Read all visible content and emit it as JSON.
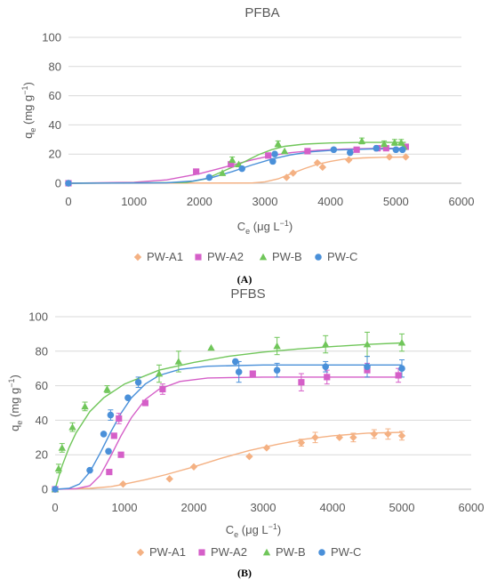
{
  "chart_data": [
    {
      "type": "scatter",
      "panel_label": "(A)",
      "title": "PFBA",
      "xlabel": {
        "base": "C",
        "sub": "e",
        "unit": "(μg L",
        "sup": "−1",
        "end": ")"
      },
      "ylabel": {
        "base": "q",
        "sub": "e",
        "unit": "(mg g",
        "sup": "−1",
        "end": ")"
      },
      "xlim": [
        0,
        6000
      ],
      "ylim": [
        0,
        100
      ],
      "xticks": [
        0,
        1000,
        2000,
        3000,
        4000,
        5000,
        6000
      ],
      "yticks": [
        0,
        20,
        40,
        60,
        80,
        100
      ],
      "xtick_labels": [
        "0",
        "1000",
        "2000",
        "3000",
        "4000",
        "5000",
        "6000"
      ],
      "ytick_labels": [
        "0",
        "20",
        "40",
        "60",
        "80",
        "100"
      ],
      "grid": "horizontal",
      "legend_position": "bottom",
      "series": [
        {
          "name": "PW-A1",
          "color": "#F4B183",
          "marker": "diamond",
          "points": [
            [
              0,
              0
            ],
            [
              3330,
              4
            ],
            [
              3430,
              7
            ],
            [
              3800,
              14
            ],
            [
              3880,
              11
            ],
            [
              4280,
              16
            ],
            [
              4900,
              18
            ],
            [
              5150,
              18
            ]
          ],
          "errors": [],
          "fit": [
            [
              0,
              0
            ],
            [
              2800,
              0.2
            ],
            [
              3000,
              1
            ],
            [
              3200,
              3
            ],
            [
              3400,
              6.5
            ],
            [
              3600,
              10
            ],
            [
              3800,
              13
            ],
            [
              4000,
              15
            ],
            [
              4200,
              16.5
            ],
            [
              4500,
              17.4
            ],
            [
              4800,
              17.8
            ],
            [
              5150,
              18
            ]
          ]
        },
        {
          "name": "PW-A2",
          "color": "#D55FC8",
          "marker": "square",
          "points": [
            [
              0,
              0
            ],
            [
              1950,
              8
            ],
            [
              2480,
              13
            ],
            [
              3050,
              19
            ],
            [
              3650,
              22
            ],
            [
              4400,
              23
            ],
            [
              4720,
              24
            ],
            [
              4850,
              24
            ],
            [
              5150,
              25
            ]
          ],
          "errors": [],
          "fit": [
            [
              0,
              0
            ],
            [
              1000,
              0.7
            ],
            [
              1500,
              2.3
            ],
            [
              2000,
              6.5
            ],
            [
              2300,
              10
            ],
            [
              2500,
              12.5
            ],
            [
              2800,
              16
            ],
            [
              3100,
              19
            ],
            [
              3400,
              21
            ],
            [
              3800,
              22.6
            ],
            [
              4200,
              23.4
            ],
            [
              4700,
              23.9
            ],
            [
              5150,
              24
            ]
          ]
        },
        {
          "name": "PW-B",
          "color": "#70C65A",
          "marker": "triangle",
          "points": [
            [
              2350,
              7
            ],
            [
              2500,
              16
            ],
            [
              2600,
              13
            ],
            [
              3200,
              27
            ],
            [
              3300,
              22
            ],
            [
              4480,
              29
            ],
            [
              4820,
              27
            ],
            [
              4980,
              28
            ],
            [
              5080,
              28
            ],
            [
              5120,
              25
            ]
          ],
          "errors": [
            [
              2500,
              16,
              2
            ],
            [
              3200,
              27,
              2
            ],
            [
              4480,
              29,
              2
            ],
            [
              4820,
              27,
              2
            ],
            [
              4980,
              28,
              2
            ],
            [
              5080,
              28,
              2
            ]
          ],
          "fit": [
            [
              0,
              0
            ],
            [
              1800,
              0.5
            ],
            [
              2100,
              3
            ],
            [
              2300,
              7
            ],
            [
              2500,
              11
            ],
            [
              2700,
              15
            ],
            [
              2900,
              19.5
            ],
            [
              3100,
              23
            ],
            [
              3300,
              25.3
            ],
            [
              3600,
              26.8
            ],
            [
              4000,
              27.6
            ],
            [
              4500,
              28
            ],
            [
              5150,
              28
            ]
          ]
        },
        {
          "name": "PW-C",
          "color": "#4A90D9",
          "marker": "circle",
          "points": [
            [
              0,
              0
            ],
            [
              2150,
              4
            ],
            [
              2650,
              10
            ],
            [
              3120,
              15
            ],
            [
              3150,
              20
            ],
            [
              4050,
              23
            ],
            [
              4300,
              21
            ],
            [
              4700,
              24
            ],
            [
              5000,
              23
            ],
            [
              5100,
              23
            ]
          ],
          "errors": [],
          "fit": [
            [
              0,
              0
            ],
            [
              1500,
              0.3
            ],
            [
              1900,
              1.5
            ],
            [
              2200,
              4
            ],
            [
              2500,
              8
            ],
            [
              2800,
              12.5
            ],
            [
              3100,
              16.5
            ],
            [
              3400,
              19.5
            ],
            [
              3700,
              21.5
            ],
            [
              4100,
              22.8
            ],
            [
              4600,
              23.5
            ],
            [
              5150,
              23.8
            ]
          ]
        }
      ]
    },
    {
      "type": "scatter",
      "panel_label": "(B)",
      "title": "PFBS",
      "xlabel": {
        "base": "C",
        "sub": "e",
        "unit": "(μg L",
        "sup": "−1",
        "end": ")"
      },
      "ylabel": {
        "base": "q",
        "sub": "e",
        "unit": "(mg g",
        "sup": "−1",
        "end": ")"
      },
      "xlim": [
        0,
        6000
      ],
      "ylim": [
        0,
        100
      ],
      "xticks": [
        0,
        1000,
        2000,
        3000,
        4000,
        5000,
        6000
      ],
      "yticks": [
        0,
        20,
        40,
        60,
        80,
        100
      ],
      "xtick_labels": [
        "0",
        "1000",
        "2000",
        "3000",
        "4000",
        "5000",
        "6000"
      ],
      "ytick_labels": [
        "0",
        "20",
        "40",
        "60",
        "80",
        "100"
      ],
      "grid": "horizontal",
      "legend_position": "bottom",
      "series": [
        {
          "name": "PW-A1",
          "color": "#F4B183",
          "marker": "diamond",
          "points": [
            [
              0,
              0
            ],
            [
              980,
              3
            ],
            [
              1650,
              6
            ],
            [
              2000,
              13
            ],
            [
              2800,
              19
            ],
            [
              3050,
              24
            ],
            [
              3550,
              27
            ],
            [
              3750,
              30
            ],
            [
              4100,
              30
            ],
            [
              4300,
              30
            ],
            [
              4600,
              32
            ],
            [
              4800,
              32
            ],
            [
              5000,
              31
            ]
          ],
          "errors": [
            [
              3550,
              27,
              2
            ],
            [
              3750,
              30,
              3
            ],
            [
              4300,
              30,
              2.5
            ],
            [
              4600,
              32,
              2.5
            ],
            [
              4800,
              32,
              3
            ],
            [
              5000,
              31,
              2.5
            ]
          ],
          "fit": [
            [
              0,
              0
            ],
            [
              500,
              0.5
            ],
            [
              800,
              1.5
            ],
            [
              1000,
              3
            ],
            [
              1300,
              5.5
            ],
            [
              1600,
              8.5
            ],
            [
              2000,
              13
            ],
            [
              2400,
              18
            ],
            [
              2800,
              22.5
            ],
            [
              3200,
              26
            ],
            [
              3600,
              29
            ],
            [
              4000,
              31
            ],
            [
              4500,
              32.5
            ],
            [
              5000,
              33
            ]
          ]
        },
        {
          "name": "PW-A2",
          "color": "#D55FC8",
          "marker": "square",
          "points": [
            [
              0,
              0
            ],
            [
              780,
              10
            ],
            [
              850,
              31
            ],
            [
              920,
              41
            ],
            [
              950,
              20
            ],
            [
              1300,
              50
            ],
            [
              1550,
              58
            ],
            [
              2850,
              67
            ],
            [
              3550,
              62
            ],
            [
              3920,
              65
            ],
            [
              4500,
              69
            ],
            [
              4950,
              66
            ]
          ],
          "errors": [
            [
              920,
              41,
              3
            ],
            [
              1550,
              58,
              3
            ],
            [
              3550,
              62,
              5
            ],
            [
              3920,
              65,
              4
            ],
            [
              4500,
              69,
              4
            ],
            [
              4950,
              66,
              4
            ]
          ],
          "fit": [
            [
              0,
              0
            ],
            [
              300,
              0.3
            ],
            [
              500,
              2
            ],
            [
              650,
              8
            ],
            [
              800,
              19
            ],
            [
              950,
              31
            ],
            [
              1100,
              41.5
            ],
            [
              1300,
              52
            ],
            [
              1500,
              58
            ],
            [
              1800,
              62.5
            ],
            [
              2200,
              64.5
            ],
            [
              3000,
              65
            ],
            [
              5000,
              65
            ]
          ]
        },
        {
          "name": "PW-B",
          "color": "#70C65A",
          "marker": "triangle",
          "points": [
            [
              0,
              0
            ],
            [
              50,
              12
            ],
            [
              100,
              24
            ],
            [
              250,
              36
            ],
            [
              430,
              48
            ],
            [
              750,
              58
            ],
            [
              1500,
              67
            ],
            [
              1780,
              74
            ],
            [
              2250,
              82
            ],
            [
              3200,
              83
            ],
            [
              3900,
              84
            ],
            [
              4500,
              84
            ],
            [
              5000,
              85
            ]
          ],
          "errors": [
            [
              50,
              12,
              2.5
            ],
            [
              100,
              24,
              2.5
            ],
            [
              250,
              36,
              2.5
            ],
            [
              430,
              48,
              2.5
            ],
            [
              750,
              58,
              2
            ],
            [
              1500,
              67,
              5
            ],
            [
              1780,
              74,
              6
            ],
            [
              3200,
              83,
              5
            ],
            [
              3900,
              84,
              5
            ],
            [
              4500,
              84,
              7
            ],
            [
              5000,
              85,
              5
            ]
          ],
          "fit": [
            [
              0,
              0
            ],
            [
              50,
              7
            ],
            [
              100,
              13.5
            ],
            [
              200,
              24
            ],
            [
              300,
              32.5
            ],
            [
              500,
              45
            ],
            [
              700,
              53
            ],
            [
              1000,
              61
            ],
            [
              1500,
              69
            ],
            [
              2000,
              73.5
            ],
            [
              2500,
              77
            ],
            [
              3000,
              79.5
            ],
            [
              3500,
              81.3
            ],
            [
              4000,
              82.7
            ],
            [
              4500,
              83.9
            ],
            [
              5000,
              84.8
            ]
          ]
        },
        {
          "name": "PW-C",
          "color": "#4A90D9",
          "marker": "circle",
          "points": [
            [
              0,
              0
            ],
            [
              500,
              11
            ],
            [
              700,
              32
            ],
            [
              770,
              22
            ],
            [
              800,
              43
            ],
            [
              1050,
              53
            ],
            [
              1200,
              62
            ],
            [
              2600,
              74
            ],
            [
              2650,
              68
            ],
            [
              3200,
              69
            ],
            [
              3900,
              71
            ],
            [
              4500,
              71
            ],
            [
              5000,
              70
            ]
          ],
          "errors": [
            [
              800,
              43,
              3
            ],
            [
              1200,
              62,
              3
            ],
            [
              2650,
              68,
              6
            ],
            [
              3200,
              69,
              4
            ],
            [
              3900,
              71,
              3
            ],
            [
              4500,
              71,
              6
            ],
            [
              5000,
              70,
              5
            ]
          ],
          "fit": [
            [
              0,
              0
            ],
            [
              200,
              0.5
            ],
            [
              350,
              3
            ],
            [
              500,
              10
            ],
            [
              650,
              21
            ],
            [
              800,
              33
            ],
            [
              950,
              44
            ],
            [
              1100,
              53
            ],
            [
              1300,
              61
            ],
            [
              1500,
              66
            ],
            [
              1800,
              69.5
            ],
            [
              2200,
              71.3
            ],
            [
              3000,
              72
            ],
            [
              5000,
              72
            ]
          ]
        }
      ]
    }
  ]
}
